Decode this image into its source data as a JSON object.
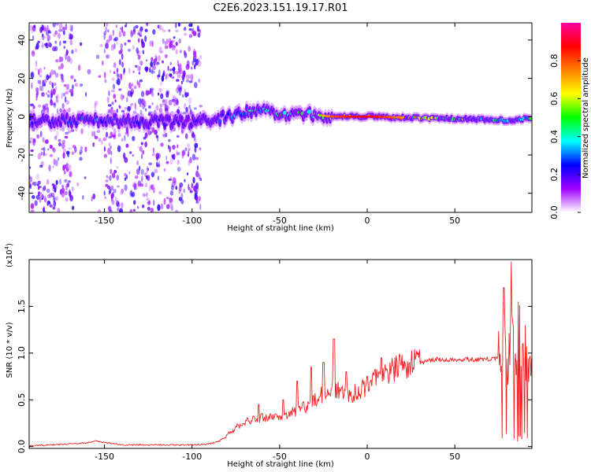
{
  "figure_title": "C2E6.2023.151.19.17.R01",
  "chart_data": [
    {
      "type": "heatmap",
      "xlabel": "Height of straight line (km)",
      "ylabel": "Frequency (Hz)",
      "xlim": [
        -193,
        94
      ],
      "ylim": [
        -50,
        49
      ],
      "xticks": [
        -150,
        -100,
        -50,
        0,
        50
      ],
      "yticks": [
        -40,
        -20,
        0,
        20,
        40
      ],
      "colorbar": {
        "label": "Normalized spectral amplitude",
        "range": [
          0,
          1
        ],
        "ticks": [
          0.0,
          0.2,
          0.4,
          0.6,
          0.8
        ],
        "tick_labels": [
          "0.0",
          "0.2",
          "0.4",
          "0.6",
          "0.8"
        ],
        "colormap": [
          "#ffffff",
          "#a000ff",
          "#0000ff",
          "#00ffff",
          "#00ff00",
          "#ffff00",
          "#ff8000",
          "#ff0000",
          "#ff00a0"
        ]
      },
      "ridge": {
        "description": "signal band near 0 Hz; noisy scatter for heights below -95 km",
        "center_freq_by_height": [
          [
            -193,
            -2
          ],
          [
            -150,
            -2
          ],
          [
            -100,
            -3
          ],
          [
            -90,
            -2
          ],
          [
            -80,
            0
          ],
          [
            -70,
            2
          ],
          [
            -60,
            3
          ],
          [
            -50,
            1
          ],
          [
            -40,
            2
          ],
          [
            -30,
            1
          ],
          [
            -20,
            0
          ],
          [
            0,
            0
          ],
          [
            50,
            -1
          ],
          [
            80,
            -2
          ],
          [
            90,
            -1
          ]
        ],
        "normalized_amplitude_by_height": [
          [
            -193,
            0.25
          ],
          [
            -150,
            0.3
          ],
          [
            -100,
            0.2
          ],
          [
            -80,
            0.35
          ],
          [
            -60,
            0.45
          ],
          [
            -40,
            0.5
          ],
          [
            -30,
            0.6
          ],
          [
            -20,
            0.8
          ],
          [
            -10,
            0.85
          ],
          [
            0,
            0.9
          ],
          [
            30,
            0.65
          ],
          [
            60,
            0.55
          ],
          [
            80,
            0.4
          ],
          [
            94,
            0.5
          ]
        ]
      },
      "noise_region_heights": [
        -193,
        -95
      ]
    },
    {
      "type": "line",
      "xlabel": "Height of straight line (km)",
      "ylabel": "SNR (10 * v/v)",
      "yscale_label": "(x10",
      "yscale_exp": "4",
      "yscale_close": ")",
      "xlim": [
        -193,
        94
      ],
      "ylim": [
        -0.02,
        2.0
      ],
      "xticks": [
        -150,
        -100,
        -50,
        0,
        50
      ],
      "yticks": [
        0.0,
        0.5,
        1.0,
        1.5
      ],
      "ytick_labels": [
        "0.0",
        "0.5",
        "1.0",
        "1.5"
      ],
      "grid": false,
      "series": [
        {
          "color": "#ee2222",
          "x": [
            -193,
            -180,
            -170,
            -160,
            -155,
            -150,
            -140,
            -120,
            -100,
            -90,
            -85,
            -80,
            -75,
            -70,
            -65,
            -60,
            -55,
            -50,
            -45,
            -40,
            -35,
            -30,
            -25,
            -20,
            -15,
            -10,
            -5,
            0,
            5,
            10,
            15,
            20,
            25,
            30,
            40,
            50,
            60,
            70,
            75,
            78,
            80,
            82,
            85,
            88,
            90,
            94
          ],
          "y": [
            0.0,
            0.01,
            0.02,
            0.03,
            0.05,
            0.04,
            0.01,
            0.01,
            0.01,
            0.02,
            0.05,
            0.12,
            0.2,
            0.25,
            0.28,
            0.3,
            0.32,
            0.3,
            0.33,
            0.38,
            0.42,
            0.5,
            0.55,
            0.62,
            0.58,
            0.55,
            0.58,
            0.64,
            0.7,
            0.76,
            0.8,
            0.85,
            0.87,
            0.9,
            0.93,
            0.93,
            0.93,
            0.93,
            0.95,
            1.1,
            0.85,
            1.2,
            1.0,
            0.9,
            0.95,
            0.9
          ]
        }
      ],
      "spikes": [
        [
          -62,
          0.45
        ],
        [
          -48,
          0.5
        ],
        [
          -40,
          0.7
        ],
        [
          -32,
          0.85
        ],
        [
          -25,
          0.9
        ],
        [
          -19,
          1.15
        ],
        [
          -12,
          0.8
        ],
        [
          0,
          0.75
        ],
        [
          8,
          0.95
        ],
        [
          78,
          1.7
        ],
        [
          82,
          1.98
        ],
        [
          86,
          1.55
        ],
        [
          90,
          1.3
        ]
      ]
    }
  ]
}
